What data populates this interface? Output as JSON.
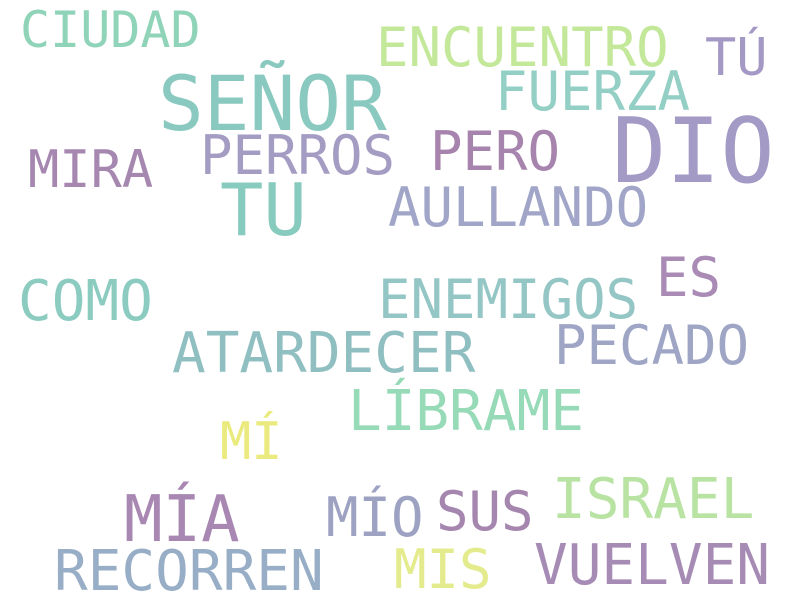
{
  "words": [
    {
      "text": "CIUDAD",
      "color": "#8fd3b8"
    },
    {
      "text": "ENCUENTRO",
      "color": "#c4e89a"
    },
    {
      "text": "TÚ",
      "color": "#a499c4"
    },
    {
      "text": "SEÑOR",
      "color": "#8ac9bf"
    },
    {
      "text": "FUERZA",
      "color": "#93cfc4"
    },
    {
      "text": "DIO",
      "color": "#a39ac5"
    },
    {
      "text": "PERROS",
      "color": "#a49cc2"
    },
    {
      "text": "PERO",
      "color": "#a784ad"
    },
    {
      "text": "MIRA",
      "color": "#a587b0"
    },
    {
      "text": "TU",
      "color": "#86cbbd"
    },
    {
      "text": "AULLANDO",
      "color": "#a1a6c8"
    },
    {
      "text": "ES",
      "color": "#a98bb5"
    },
    {
      "text": "COMO",
      "color": "#8bcbc0"
    },
    {
      "text": "ENEMIGOS",
      "color": "#93c6c4"
    },
    {
      "text": "PECADO",
      "color": "#9fa5c5"
    },
    {
      "text": "ATARDECER",
      "color": "#90bfc1"
    },
    {
      "text": "LÍBRAME",
      "color": "#96dab8"
    },
    {
      "text": "MÍ",
      "color": "#eaea7e"
    },
    {
      "text": "MÍA",
      "color": "#a888b2"
    },
    {
      "text": "MÍO",
      "color": "#9ea2c2"
    },
    {
      "text": "SUS",
      "color": "#a586ae"
    },
    {
      "text": "ISRAEL",
      "color": "#b8e3a2"
    },
    {
      "text": "RECORREN",
      "color": "#97aec6"
    },
    {
      "text": "MIS",
      "color": "#e4eb8d"
    },
    {
      "text": "VUELVEN",
      "color": "#a68bb5"
    }
  ]
}
